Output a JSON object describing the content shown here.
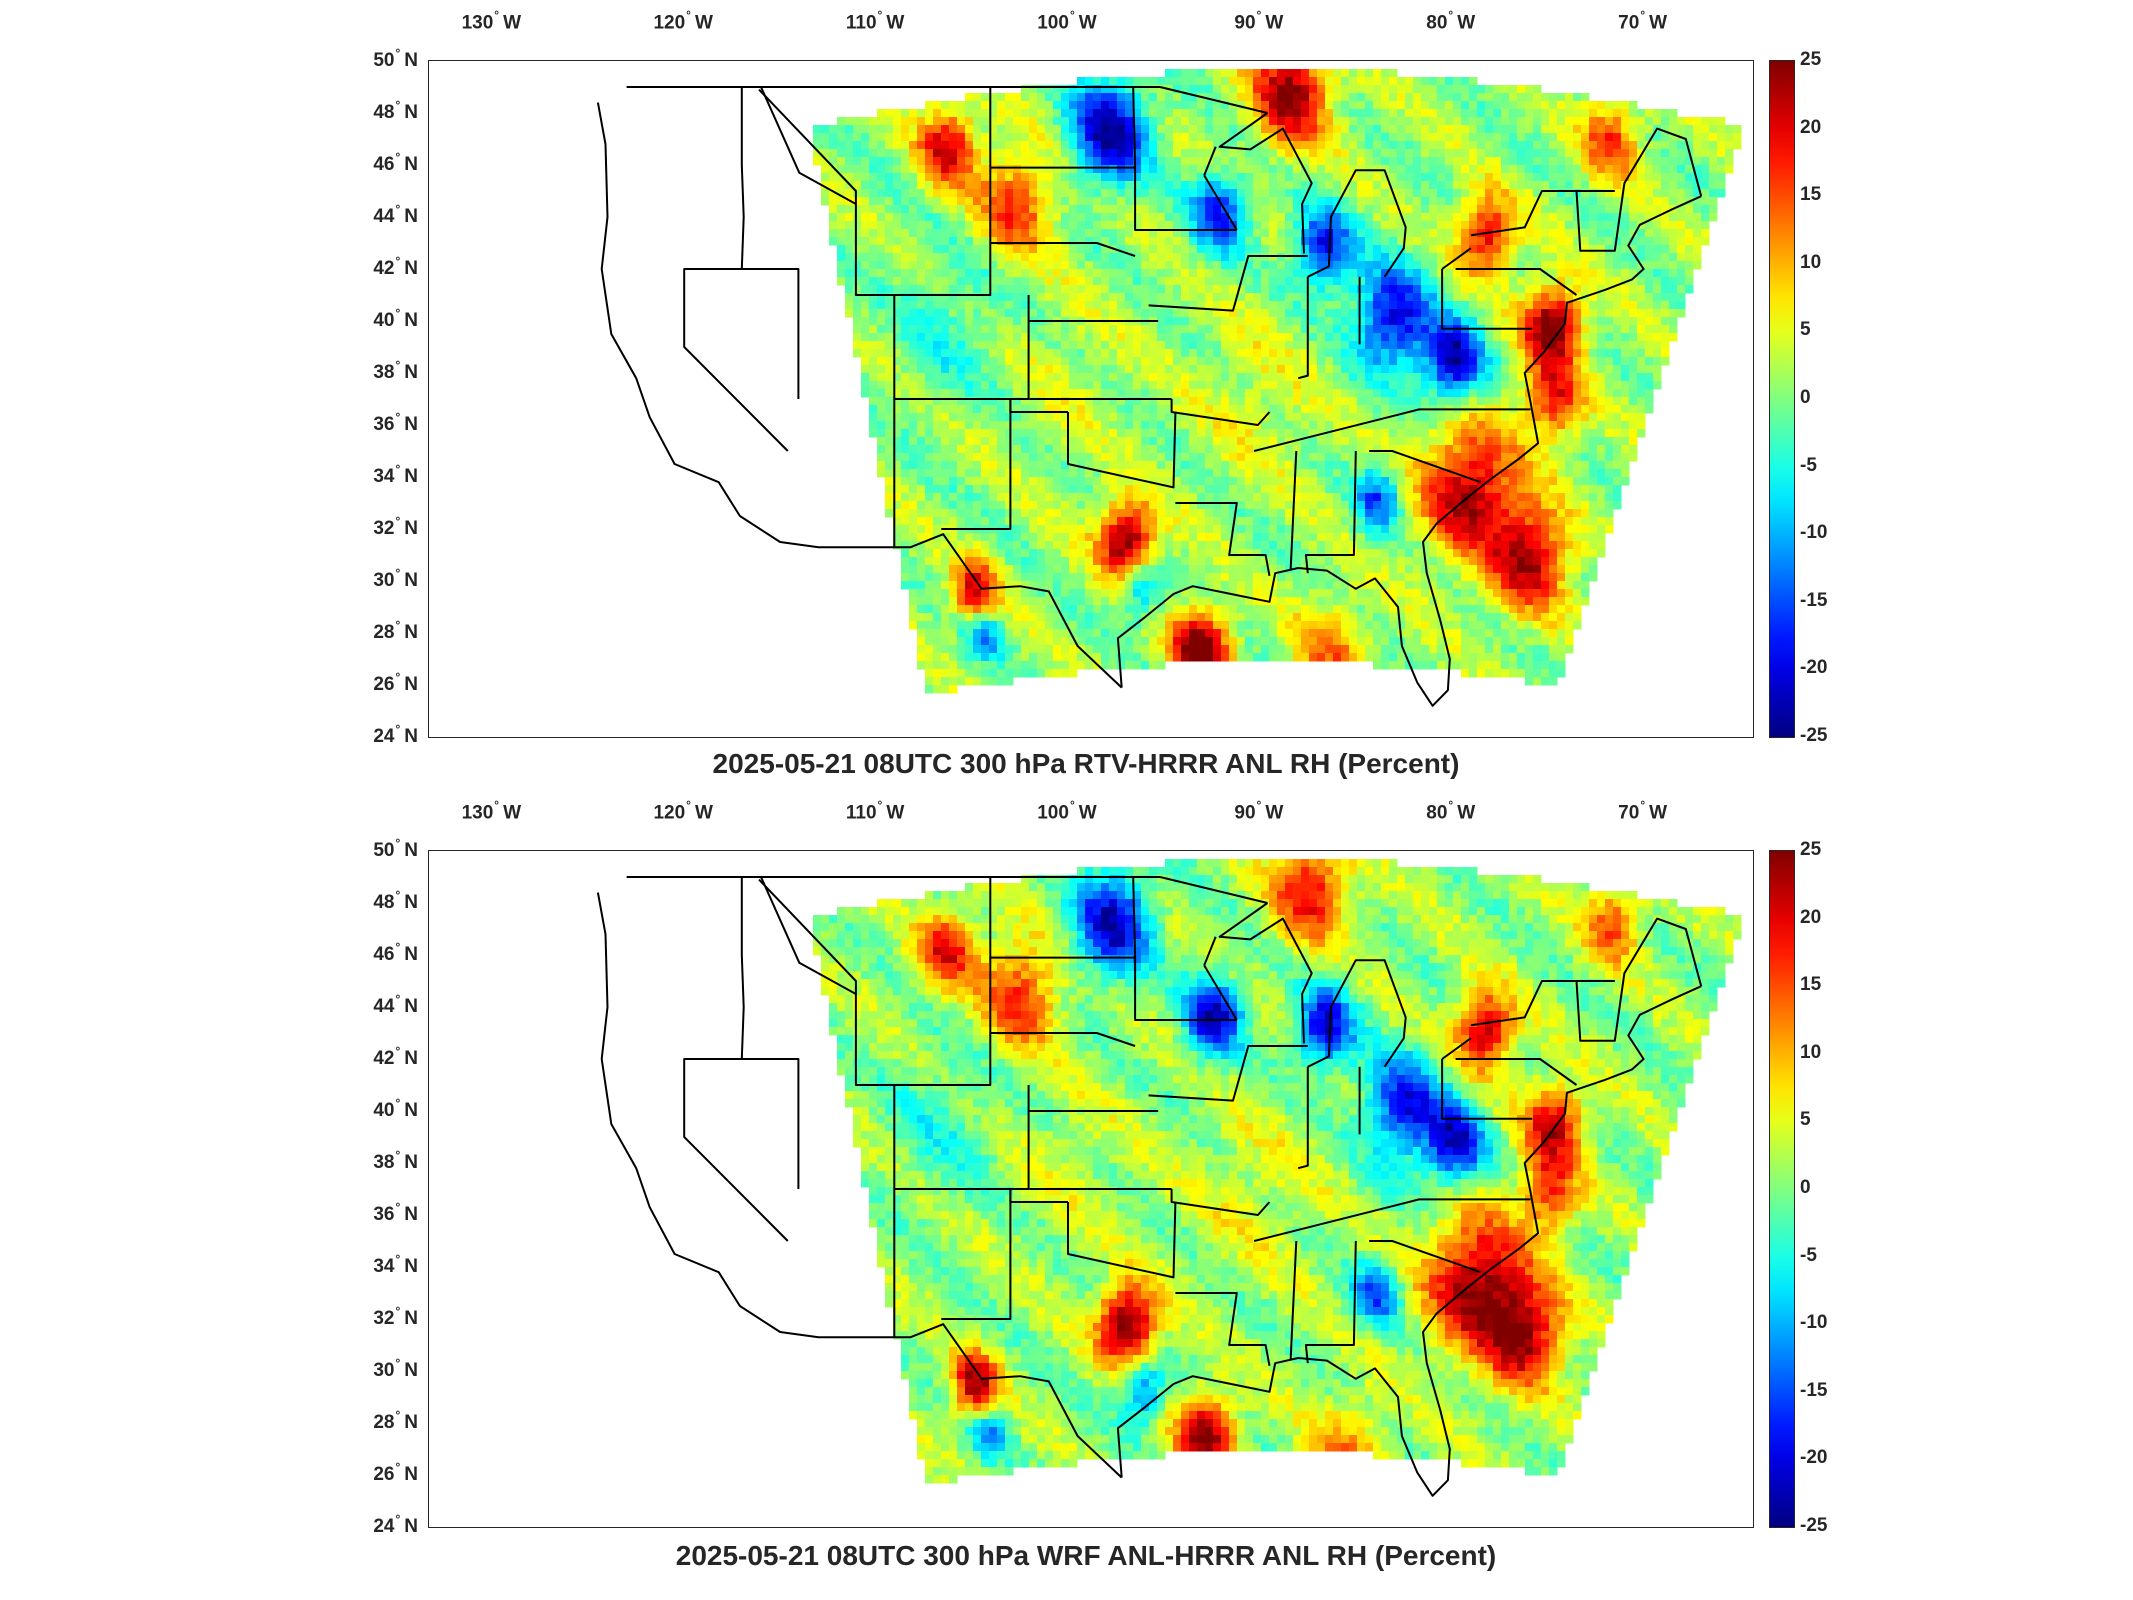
{
  "panels": [
    {
      "title": "2025-05-21 08UTC 300 hPa RTV-HRRR ANL RH (Percent)"
    },
    {
      "title": "2025-05-21 08UTC 300 hPa WRF ANL-HRRR ANL RH (Percent)"
    }
  ],
  "lon_ticks": [
    {
      "label": "130",
      "hemi": "W"
    },
    {
      "label": "120",
      "hemi": "W"
    },
    {
      "label": "110",
      "hemi": "W"
    },
    {
      "label": "100",
      "hemi": "W"
    },
    {
      "label": "90",
      "hemi": "W"
    },
    {
      "label": "80",
      "hemi": "W"
    },
    {
      "label": "70",
      "hemi": "W"
    }
  ],
  "lat_ticks": [
    {
      "label": "50",
      "hemi": "N"
    },
    {
      "label": "48",
      "hemi": "N"
    },
    {
      "label": "46",
      "hemi": "N"
    },
    {
      "label": "44",
      "hemi": "N"
    },
    {
      "label": "42",
      "hemi": "N"
    },
    {
      "label": "40",
      "hemi": "N"
    },
    {
      "label": "38",
      "hemi": "N"
    },
    {
      "label": "36",
      "hemi": "N"
    },
    {
      "label": "34",
      "hemi": "N"
    },
    {
      "label": "32",
      "hemi": "N"
    },
    {
      "label": "30",
      "hemi": "N"
    },
    {
      "label": "28",
      "hemi": "N"
    },
    {
      "label": "26",
      "hemi": "N"
    },
    {
      "label": "24",
      "hemi": "N"
    }
  ],
  "colorbar": {
    "ticks": [
      "25",
      "20",
      "15",
      "10",
      "5",
      "0",
      "-5",
      "-10",
      "-15",
      "-20",
      "-25"
    ],
    "min": -25,
    "max": 25,
    "colormap": "jet"
  },
  "colors": {
    "axis": "#262626",
    "missing": "#ffffff"
  }
}
